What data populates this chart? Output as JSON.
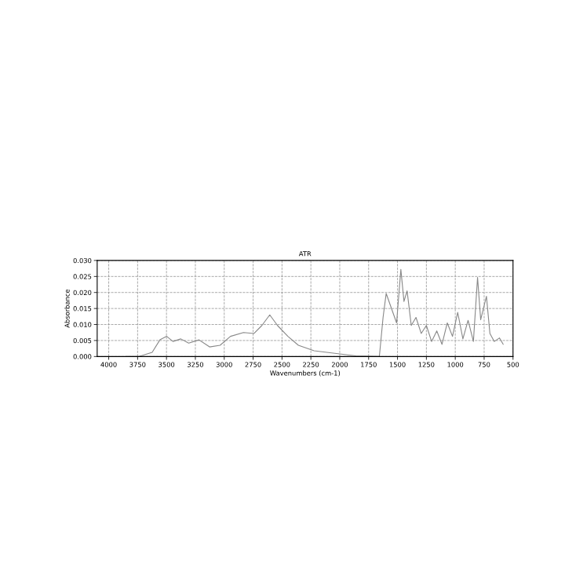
{
  "chart_data": {
    "type": "line",
    "title": "ATR",
    "xlabel": "Wavenumbers (cm-1)",
    "ylabel": "Absorbance",
    "xlim": [
      4100,
      500
    ],
    "xticks": [
      4000,
      3750,
      3500,
      3250,
      3000,
      2750,
      2500,
      2250,
      2000,
      1750,
      1500,
      1250,
      1000,
      750,
      500
    ],
    "ylim": [
      0,
      0.03
    ],
    "yticks": [
      {
        "value": 0,
        "label": "0.000"
      },
      {
        "value": 0.005,
        "label": "0.005"
      },
      {
        "value": 0.01,
        "label": "0.010"
      },
      {
        "value": 0.015,
        "label": "0.015"
      },
      {
        "value": 0.02,
        "label": "0.020"
      },
      {
        "value": 0.025,
        "label": "0.025"
      },
      {
        "value": 0.03,
        "label": "0.030"
      }
    ],
    "grid": true,
    "marker": "none",
    "line_style": "solid",
    "series": [
      {
        "color": "#888888",
        "x": [
          3850,
          3738,
          3624,
          3557,
          3498,
          3444,
          3376,
          3308,
          3218,
          3127,
          3036,
          2946,
          2833,
          2742,
          2674,
          2606,
          2539,
          2449,
          2358,
          2222,
          2042,
          1860,
          1657,
          1625,
          1598,
          1508,
          1471,
          1444,
          1417,
          1381,
          1340,
          1295,
          1250,
          1205,
          1160,
          1115,
          1069,
          1024,
          979,
          934,
          889,
          843,
          807,
          780,
          730,
          700,
          662,
          617,
          585
        ],
        "values": [
          0,
          0,
          0.0013,
          0.0052,
          0.0063,
          0.0047,
          0.0055,
          0.0042,
          0.0052,
          0.003,
          0.0035,
          0.0063,
          0.0075,
          0.0072,
          0.0097,
          0.013,
          0.0097,
          0.0063,
          0.0035,
          0.0018,
          0.001,
          0.0002,
          0,
          0.0122,
          0.0197,
          0.0105,
          0.0272,
          0.0172,
          0.0205,
          0.0097,
          0.0122,
          0.0072,
          0.0097,
          0.0047,
          0.008,
          0.0038,
          0.0105,
          0.0063,
          0.0138,
          0.0055,
          0.0113,
          0.0047,
          0.0247,
          0.0115,
          0.0188,
          0.0072,
          0.0047,
          0.0058,
          0.0038
        ]
      }
    ]
  }
}
